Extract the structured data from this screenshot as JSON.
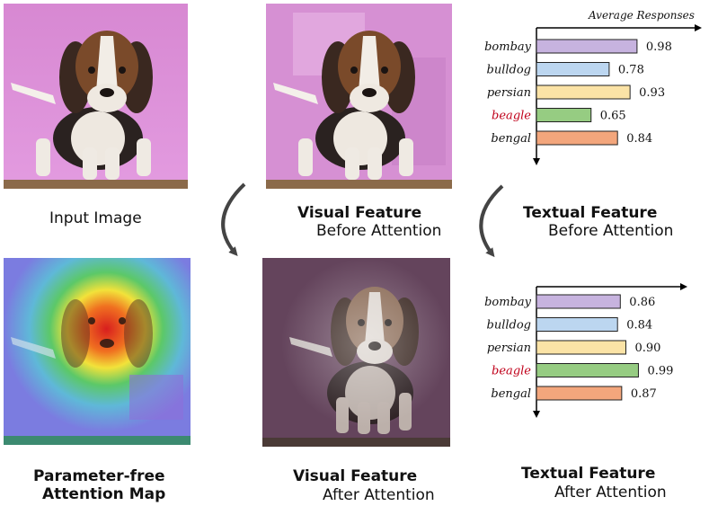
{
  "captions": {
    "input": "Input Image",
    "visual_before_title": "Visual Feature",
    "visual_before_sub": "Before Attention",
    "textual_before_title": "Textual Feature",
    "textual_before_sub": "Before Attention",
    "attention_title_1": "Parameter-free",
    "attention_title_2": "Attention Map",
    "visual_after_title": "Visual Feature",
    "visual_after_sub": "After Attention",
    "textual_after_title": "Textual Feature",
    "textual_after_sub": "After Attention"
  },
  "chart_heading": "Average Responses",
  "colors": {
    "bombay": "#c7b3df",
    "bulldog": "#bcd6f0",
    "persian": "#fbe3a6",
    "beagle": "#96cc82",
    "bengal": "#f3a67c",
    "highlight_label": "#c0001a",
    "background_pink": "#d98ad4",
    "attention_bg": "#7480d8",
    "after_bg": "#64445c"
  },
  "chart_data": [
    {
      "type": "bar",
      "orientation": "horizontal",
      "title": "Average Responses",
      "categories": [
        "bombay",
        "bulldog",
        "persian",
        "beagle",
        "bengal"
      ],
      "values": [
        0.98,
        0.78,
        0.93,
        0.65,
        0.84
      ],
      "value_labels": [
        "0.98",
        "0.78",
        "0.93",
        "0.65",
        "0.84"
      ],
      "highlight": "beagle"
    },
    {
      "type": "bar",
      "orientation": "horizontal",
      "title": "",
      "categories": [
        "bombay",
        "bulldog",
        "persian",
        "beagle",
        "bengal"
      ],
      "values": [
        0.86,
        0.84,
        0.9,
        0.99,
        0.87
      ],
      "value_labels": [
        "0.86",
        "0.84",
        "0.90",
        "0.99",
        "0.87"
      ],
      "highlight": "beagle"
    }
  ]
}
